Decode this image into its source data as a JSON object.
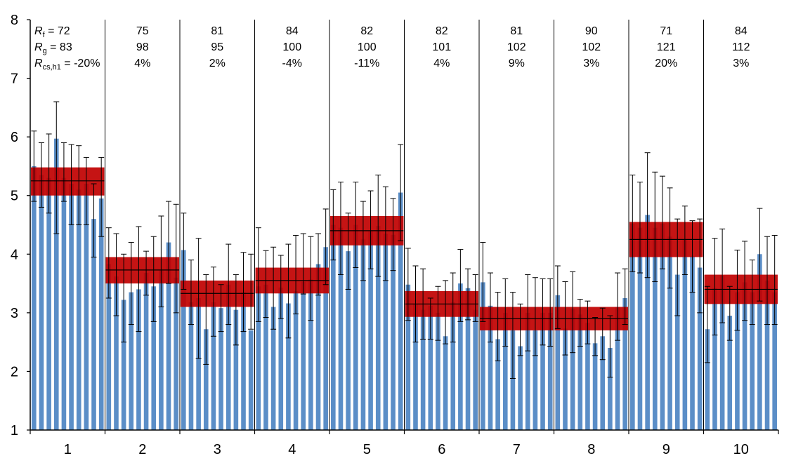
{
  "chart_data": {
    "type": "bar",
    "ylim": [
      1,
      8
    ],
    "yticks": [
      "1",
      "2",
      "3",
      "4",
      "5",
      "6",
      "7",
      "8"
    ],
    "groups": [
      "1",
      "2",
      "3",
      "4",
      "5",
      "6",
      "7",
      "8",
      "9",
      "10"
    ],
    "bar_color": "#5b8ec7",
    "band_color": "#c00000",
    "row_labels": {
      "rf": {
        "sym": "R",
        "sub": "f",
        "eq": " = "
      },
      "rg": {
        "sym": "R",
        "sub": "g",
        "eq": " = "
      },
      "rcs": {
        "sym": "R",
        "sub": "cs,h1",
        "eq": " = "
      }
    },
    "annotations": [
      {
        "rf": "72",
        "rg": "83",
        "rcs": "-20%"
      },
      {
        "rf": "75",
        "rg": "98",
        "rcs": "4%"
      },
      {
        "rf": "81",
        "rg": "95",
        "rcs": "2%"
      },
      {
        "rf": "84",
        "rg": "100",
        "rcs": "-4%"
      },
      {
        "rf": "82",
        "rg": "100",
        "rcs": "-11%"
      },
      {
        "rf": "82",
        "rg": "101",
        "rcs": "4%"
      },
      {
        "rf": "81",
        "rg": "102",
        "rcs": "9%"
      },
      {
        "rf": "90",
        "rg": "102",
        "rcs": "3%"
      },
      {
        "rf": "71",
        "rg": "121",
        "rcs": "20%"
      },
      {
        "rf": "84",
        "rg": "112",
        "rcs": "3%"
      }
    ],
    "mean_bands": [
      {
        "mean": 5.25,
        "low": 5.0,
        "high": 5.48
      },
      {
        "mean": 3.73,
        "low": 3.5,
        "high": 3.95
      },
      {
        "mean": 3.33,
        "low": 3.1,
        "high": 3.55
      },
      {
        "mean": 3.55,
        "low": 3.33,
        "high": 3.77
      },
      {
        "mean": 4.4,
        "low": 4.15,
        "high": 4.65
      },
      {
        "mean": 3.15,
        "low": 2.93,
        "high": 3.37
      },
      {
        "mean": 2.9,
        "low": 2.7,
        "high": 3.1
      },
      {
        "mean": 2.9,
        "low": 2.7,
        "high": 3.1
      },
      {
        "mean": 4.25,
        "low": 3.95,
        "high": 4.55
      },
      {
        "mean": 3.4,
        "low": 3.15,
        "high": 3.65
      }
    ],
    "series": [
      {
        "values": [
          5.5,
          5.35,
          5.3,
          5.97,
          5.3,
          5.2,
          5.1,
          5.2,
          4.6,
          4.95
        ],
        "err_high": [
          6.1,
          5.9,
          6.05,
          6.6,
          5.9,
          5.87,
          5.85,
          5.65,
          5.2,
          5.65
        ],
        "err_low": [
          4.9,
          4.8,
          4.7,
          4.35,
          4.9,
          4.5,
          4.5,
          4.5,
          3.95,
          4.3
        ]
      },
      {
        "values": [
          3.83,
          3.62,
          3.22,
          3.35,
          3.4,
          3.68,
          3.45,
          3.72,
          4.2,
          3.6
        ],
        "err_high": [
          4.45,
          4.35,
          4.0,
          4.2,
          4.47,
          4.05,
          4.3,
          4.65,
          4.9,
          4.85
        ],
        "err_low": [
          3.25,
          2.95,
          2.5,
          2.8,
          2.68,
          3.3,
          2.85,
          3.1,
          3.5,
          3.0
        ]
      },
      {
        "values": [
          4.07,
          3.18,
          3.25,
          2.72,
          3.18,
          3.08,
          3.48,
          3.05,
          3.35,
          2.7
        ],
        "err_high": [
          4.7,
          3.9,
          4.27,
          3.65,
          3.78,
          3.48,
          4.17,
          3.65,
          4.03,
          4.0
        ],
        "err_low": [
          3.4,
          2.8,
          2.22,
          2.12,
          2.6,
          2.68,
          2.8,
          2.45,
          2.68,
          2.72
        ]
      },
      {
        "values": [
          3.45,
          3.48,
          3.1,
          3.43,
          3.16,
          3.37,
          3.53,
          3.57,
          3.83,
          4.12
        ],
        "err_high": [
          4.45,
          4.06,
          4.12,
          3.98,
          4.17,
          4.32,
          4.35,
          4.3,
          4.35,
          4.77
        ],
        "err_low": [
          2.85,
          2.92,
          2.72,
          2.9,
          2.57,
          2.98,
          3.32,
          2.87,
          3.3,
          3.48
        ]
      },
      {
        "values": [
          4.5,
          4.45,
          4.05,
          4.5,
          4.25,
          4.4,
          4.48,
          4.35,
          4.33,
          5.05
        ],
        "err_high": [
          5.1,
          5.23,
          4.7,
          5.23,
          4.9,
          5.08,
          5.35,
          5.15,
          4.95,
          5.87
        ],
        "err_low": [
          3.9,
          3.65,
          3.4,
          3.77,
          3.55,
          3.75,
          3.62,
          3.55,
          3.72,
          4.23
        ]
      },
      {
        "values": [
          3.48,
          3.15,
          3.05,
          3.12,
          3.0,
          2.6,
          3.18,
          3.5,
          3.42,
          3.05
        ],
        "err_high": [
          4.1,
          3.8,
          3.75,
          3.25,
          3.45,
          3.55,
          3.68,
          4.08,
          3.75,
          3.65
        ],
        "err_low": [
          2.87,
          2.5,
          2.55,
          2.55,
          2.53,
          2.47,
          2.5,
          2.85,
          2.88,
          2.85
        ]
      },
      {
        "values": [
          3.52,
          3.12,
          2.55,
          3.0,
          2.7,
          2.43,
          3.0,
          2.7,
          3.0,
          3.0
        ],
        "err_high": [
          4.2,
          3.68,
          3.35,
          3.58,
          3.35,
          3.15,
          3.65,
          3.6,
          3.58,
          3.58
        ],
        "err_low": [
          2.85,
          2.5,
          2.18,
          2.43,
          1.88,
          2.27,
          2.35,
          2.27,
          2.45,
          2.43
        ]
      },
      {
        "values": [
          3.3,
          2.73,
          3.07,
          2.97,
          2.83,
          2.48,
          2.6,
          2.4,
          3.1,
          3.25
        ],
        "err_high": [
          3.8,
          3.53,
          3.7,
          3.23,
          3.2,
          2.92,
          3.08,
          2.95,
          3.68,
          3.75
        ],
        "err_low": [
          2.73,
          2.28,
          2.32,
          2.43,
          2.47,
          2.27,
          2.2,
          1.9,
          2.53,
          2.8
        ]
      },
      {
        "values": [
          4.52,
          4.45,
          4.67,
          4.45,
          4.52,
          4.3,
          3.65,
          4.25,
          3.97,
          3.77
        ],
        "err_high": [
          5.35,
          5.23,
          5.73,
          5.4,
          5.33,
          5.13,
          4.6,
          4.82,
          4.57,
          4.6
        ],
        "err_low": [
          3.7,
          3.68,
          3.6,
          3.53,
          3.75,
          3.42,
          2.95,
          3.65,
          3.35,
          3.0
        ]
      },
      {
        "values": [
          2.72,
          3.42,
          3.63,
          2.95,
          3.35,
          3.52,
          3.35,
          4.0,
          3.55,
          3.35
        ],
        "err_high": [
          3.45,
          4.27,
          4.43,
          3.45,
          4.07,
          4.22,
          3.9,
          4.78,
          4.3,
          4.32
        ],
        "err_low": [
          2.15,
          2.62,
          2.83,
          2.53,
          2.7,
          2.87,
          2.8,
          3.2,
          2.8,
          2.8
        ]
      }
    ]
  }
}
